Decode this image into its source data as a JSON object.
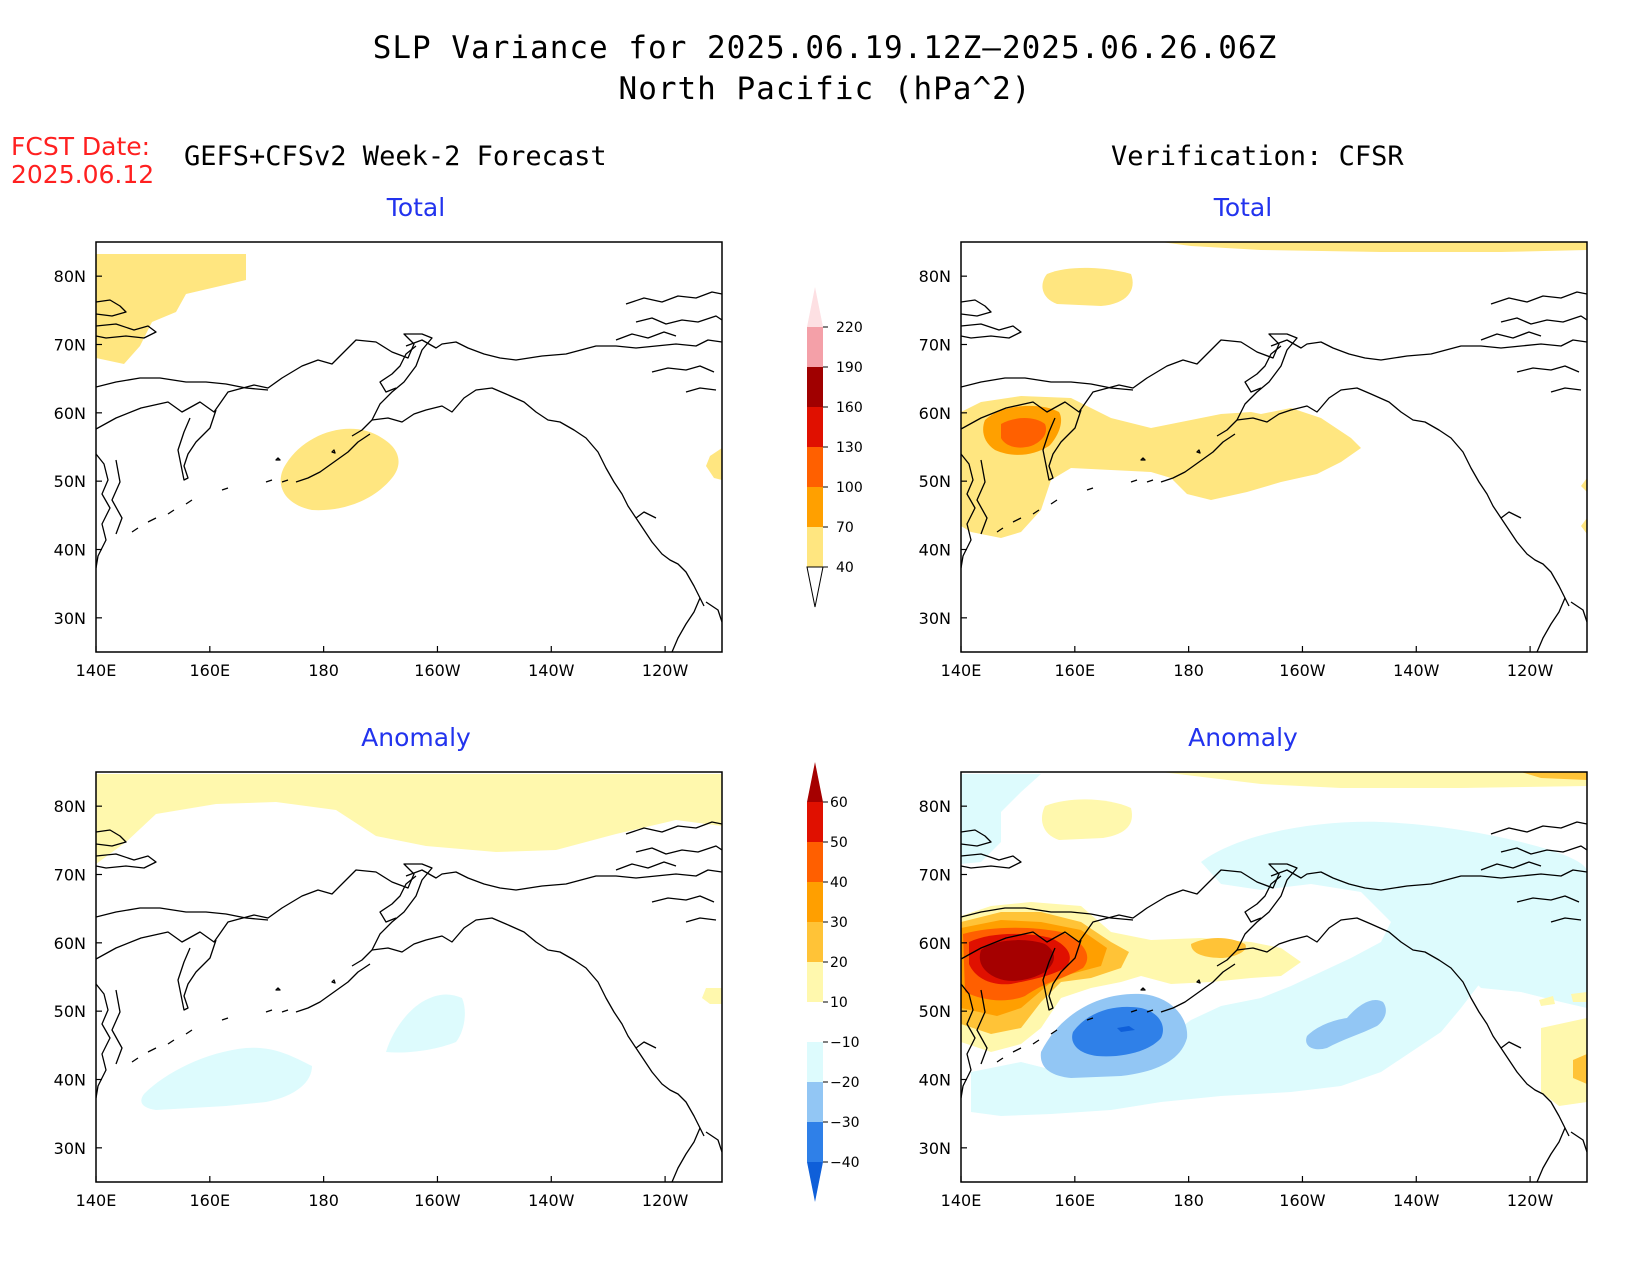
{
  "header": {
    "title_line1": "SLP Variance for 2025.06.19.12Z–2025.06.26.06Z",
    "title_line2": "North Pacific (hPa^2)",
    "fcst_label": "FCST Date:",
    "fcst_date": "2025.06.12",
    "left_heading": "GEFS+CFSv2 Week-2 Forecast",
    "right_heading": "Verification: CFSR"
  },
  "panels": {
    "forecast_total_title": "Total",
    "verification_total_title": "Total",
    "forecast_anomaly_title": "Anomaly",
    "verification_anomaly_title": "Anomaly"
  },
  "axes": {
    "lat_labels": [
      "80N",
      "70N",
      "60N",
      "50N",
      "40N",
      "30N"
    ],
    "lat_values": [
      80,
      70,
      60,
      50,
      40,
      30
    ],
    "lon_labels": [
      "140E",
      "160E",
      "180",
      "160W",
      "140W",
      "120W"
    ],
    "lon_values": [
      140,
      160,
      180,
      200,
      220,
      240
    ],
    "lat_range": [
      25,
      85
    ],
    "lon_range": [
      140,
      250
    ]
  },
  "colorbars": {
    "total": {
      "levels": [
        "40",
        "70",
        "100",
        "130",
        "160",
        "190",
        "220"
      ],
      "colors": [
        "#ffe680",
        "#ffa000",
        "#ff6000",
        "#e01000",
        "#a00000",
        "#f4a0a8",
        "#fde0e3"
      ]
    },
    "anomaly": {
      "levels": [
        "-40",
        "-30",
        "-20",
        "-10",
        "10",
        "20",
        "30",
        "40",
        "50",
        "60"
      ],
      "colors": [
        "#0f5fd9",
        "#2f80e8",
        "#92c6f4",
        "#ddfbfd",
        "#ffffff",
        "#fff8ad",
        "#ffc337",
        "#ff9f00",
        "#ff5f00",
        "#e01000",
        "#a50000"
      ]
    }
  },
  "colors": {
    "land_outline": "#000000",
    "title_blue": "#2233ee",
    "fcst_red": "#ff2020"
  }
}
